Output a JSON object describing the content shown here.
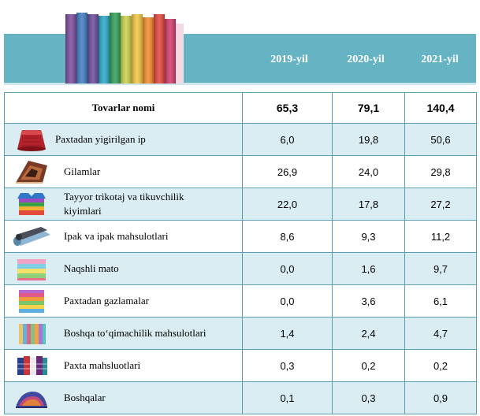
{
  "header": {
    "years": [
      "2019-yil",
      "2020-yil",
      "2021-yil"
    ]
  },
  "table": {
    "head": {
      "name": "Tovarlar nomi",
      "values": [
        "65,3",
        "79,1",
        "140,4"
      ]
    },
    "rows": [
      {
        "name": "Paxtadan yigirilgan ip",
        "values": [
          "6,0",
          "19,8",
          "50,6"
        ],
        "icon": "yarn-cone-icon"
      },
      {
        "name": "Gilamlar",
        "values": [
          "26,9",
          "24,0",
          "29,8"
        ],
        "icon": "carpet-icon"
      },
      {
        "name": "Tayyor trikotaj va tikuvchilik kiyimlari",
        "values": [
          "22,0",
          "17,8",
          "27,2"
        ],
        "icon": "folded-clothes-icon"
      },
      {
        "name": "Ipak va ipak mahsulotlari",
        "values": [
          "8,6",
          "9,3",
          "11,2"
        ],
        "icon": "silk-rolls-icon"
      },
      {
        "name": "Naqshli mato",
        "values": [
          "0,0",
          "1,6",
          "9,7"
        ],
        "icon": "patterned-fabric-icon"
      },
      {
        "name": "Paxtadan gazlamalar",
        "values": [
          "0,0",
          "3,6",
          "6,1"
        ],
        "icon": "fabric-stack-icon"
      },
      {
        "name": "Boshqa to‘qimachilik mahsulotlari",
        "values": [
          "1,4",
          "2,4",
          "4,7"
        ],
        "icon": "fabric-bolts-icon"
      },
      {
        "name": "Paxta mahsluotlari",
        "values": [
          "0,3",
          "0,2",
          "0,2"
        ],
        "icon": "textile-samples-icon"
      },
      {
        "name": "Boshqalar",
        "values": [
          "0,1",
          "0,3",
          "0,9"
        ],
        "icon": "textile-pile-icon"
      }
    ]
  },
  "colors": {
    "header": "#66b3c4",
    "stripe": "#d9edf3",
    "border": "#5a9fb0"
  }
}
